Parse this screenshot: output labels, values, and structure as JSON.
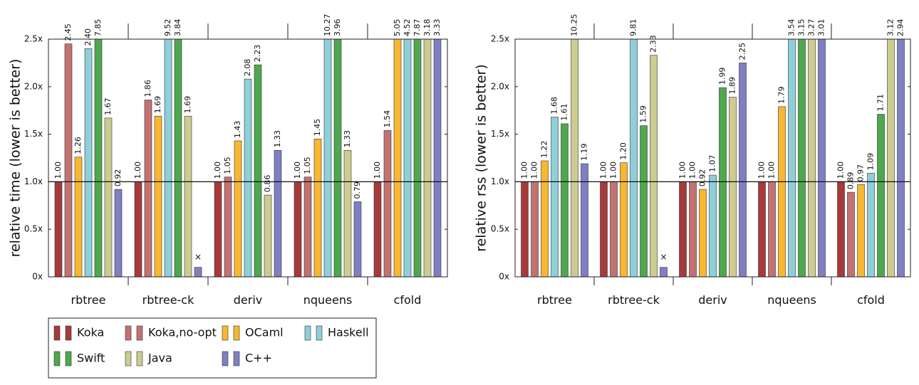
{
  "chart_data": [
    {
      "type": "bar",
      "ylabel": "relative time (lower is better)",
      "categories": [
        "rbtree",
        "rbtree-ck",
        "deriv",
        "nqueens",
        "cfold"
      ],
      "ylim": [
        0,
        2.5
      ],
      "yticks": [
        {
          "value": 0,
          "label": "0x"
        },
        {
          "value": 0.5,
          "label": "0.5x"
        },
        {
          "value": 1,
          "label": "1.0x"
        },
        {
          "value": 1.5,
          "label": "1.5x"
        },
        {
          "value": 2,
          "label": "2.0x"
        },
        {
          "value": 2.5,
          "label": "2.5x"
        }
      ],
      "hline": 1,
      "series": [
        {
          "name": "Koka",
          "color": "#a63a3a",
          "values": [
            1.0,
            1.0,
            1.0,
            1.0,
            1.0
          ],
          "value_labels": [
            "1.00",
            "1.00",
            "1.00",
            "1.00",
            "1.00"
          ]
        },
        {
          "name": "Koka,no-opt",
          "color": "#c27272",
          "values": [
            2.45,
            1.86,
            1.05,
            1.05,
            1.54
          ],
          "value_labels": [
            "2.45",
            "1.86",
            "1.05",
            "1.05",
            "1.54"
          ]
        },
        {
          "name": "OCaml",
          "color": "#f8b730",
          "values": [
            1.26,
            1.69,
            1.43,
            1.45,
            5.05
          ],
          "value_labels": [
            "1.26",
            "1.69",
            "1.43",
            "1.45",
            "5.05"
          ]
        },
        {
          "name": "Haskell",
          "color": "#8ecfd8",
          "values": [
            2.4,
            9.52,
            2.08,
            10.27,
            4.52
          ],
          "value_labels": [
            "2.40",
            "9.52",
            "2.08",
            "10.27",
            "4.52"
          ]
        },
        {
          "name": "Swift",
          "color": "#4ea84e",
          "values": [
            7.85,
            3.84,
            2.23,
            3.96,
            7.87
          ],
          "value_labels": [
            "7.85",
            "3.84",
            "2.23",
            "3.96",
            "7.87"
          ]
        },
        {
          "name": "Java",
          "color": "#cccc90",
          "values": [
            1.67,
            1.69,
            0.86,
            1.33,
            3.18
          ],
          "value_labels": [
            "1.67",
            "1.69",
            "0.86",
            "1.33",
            "3.18"
          ]
        },
        {
          "name": "C++",
          "color": "#7f7fc4",
          "values": [
            0.92,
            null,
            1.33,
            0.79,
            3.33
          ],
          "value_labels": [
            "0.92",
            "×",
            "1.33",
            "0.79",
            "3.33"
          ]
        }
      ]
    },
    {
      "type": "bar",
      "ylabel": "relative rss (lower is better)",
      "categories": [
        "rbtree",
        "rbtree-ck",
        "deriv",
        "nqueens",
        "cfold"
      ],
      "ylim": [
        0,
        2.5
      ],
      "yticks": [
        {
          "value": 0,
          "label": "0x"
        },
        {
          "value": 0.5,
          "label": "0.5x"
        },
        {
          "value": 1,
          "label": "1.0x"
        },
        {
          "value": 1.5,
          "label": "1.5x"
        },
        {
          "value": 2,
          "label": "2.0x"
        },
        {
          "value": 2.5,
          "label": "2.5x"
        }
      ],
      "hline": 1,
      "series": [
        {
          "color": "#a63a3a",
          "values": [
            1.0,
            1.0,
            1.0,
            1.0,
            1.0
          ],
          "value_labels": [
            "1.00",
            "1.00",
            "1.00",
            "1.00",
            "1.00"
          ]
        },
        {
          "color": "#c27272",
          "values": [
            1.0,
            1.0,
            1.0,
            1.0,
            0.89
          ],
          "value_labels": [
            "1.00",
            "1.00",
            "1.00",
            "1.00",
            "0.89"
          ]
        },
        {
          "color": "#f8b730",
          "values": [
            1.22,
            1.2,
            0.92,
            1.79,
            0.97
          ],
          "value_labels": [
            "1.22",
            "1.20",
            "0.92",
            "1.79",
            "0.97"
          ]
        },
        {
          "color": "#8ecfd8",
          "values": [
            1.68,
            9.81,
            1.07,
            3.54,
            1.09
          ],
          "value_labels": [
            "1.68",
            "9.81",
            "1.07",
            "3.54",
            "1.09"
          ]
        },
        {
          "color": "#4ea84e",
          "values": [
            1.61,
            1.59,
            1.99,
            3.15,
            1.71
          ],
          "value_labels": [
            "1.61",
            "1.59",
            "1.99",
            "3.15",
            "1.71"
          ]
        },
        {
          "color": "#cccc90",
          "values": [
            10.25,
            2.33,
            1.89,
            3.27,
            3.12
          ],
          "value_labels": [
            "10.25",
            "2.33",
            "1.89",
            "3.27",
            "3.12"
          ]
        },
        {
          "color": "#7f7fc4",
          "values": [
            1.19,
            null,
            2.25,
            3.01,
            2.94
          ],
          "value_labels": [
            "1.19",
            "×",
            "2.25",
            "3.01",
            "2.94"
          ]
        }
      ]
    }
  ]
}
